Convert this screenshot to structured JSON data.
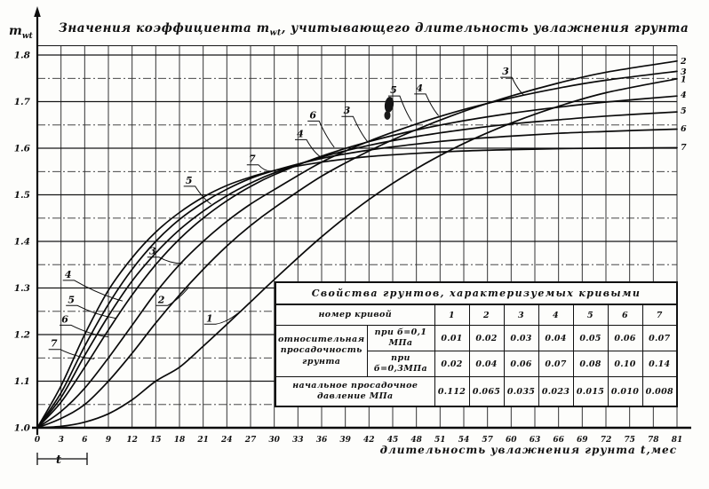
{
  "figure": {
    "title": {
      "prefix": "Значения коэффициента ",
      "symbol": "m",
      "symbol_sub": "wt",
      "suffix": ", учитывающего длительность увлажнения грунта"
    },
    "y_axis": {
      "symbol": "m",
      "symbol_sub": "wt"
    },
    "x_axis": {
      "label": "длительность увлажнения грунта t,мес"
    },
    "origin_bracket_label": "t"
  },
  "chart_data": {
    "type": "line",
    "title": "Значения коэффициента mwt, учитывающего длительность увлажнения грунта",
    "xlabel": "длительность увлажнения грунта t,мес",
    "ylabel": "mwt",
    "xlim": [
      0,
      81
    ],
    "ylim": [
      1.0,
      1.82
    ],
    "grid": true,
    "legend_position": "none",
    "x_ticks": [
      0,
      3,
      6,
      9,
      12,
      15,
      18,
      21,
      24,
      27,
      30,
      33,
      36,
      39,
      42,
      45,
      48,
      51,
      54,
      57,
      60,
      63,
      66,
      69,
      72,
      75,
      78,
      81
    ],
    "y_ticks": [
      1.0,
      1.1,
      1.2,
      1.3,
      1.4,
      1.5,
      1.6,
      1.7,
      1.8
    ],
    "x": [
      0,
      3,
      6,
      9,
      12,
      15,
      18,
      21,
      24,
      27,
      30,
      36,
      42,
      48,
      54,
      60,
      66,
      72,
      81
    ],
    "series": [
      {
        "name": "1",
        "values": [
          1.0,
          1.003,
          1.012,
          1.03,
          1.06,
          1.1,
          1.13,
          1.175,
          1.222,
          1.27,
          1.318,
          1.41,
          1.49,
          1.556,
          1.61,
          1.654,
          1.69,
          1.719,
          1.749
        ]
      },
      {
        "name": "2",
        "values": [
          1.0,
          1.02,
          1.05,
          1.1,
          1.16,
          1.225,
          1.285,
          1.34,
          1.39,
          1.434,
          1.472,
          1.54,
          1.594,
          1.64,
          1.679,
          1.712,
          1.74,
          1.763,
          1.787
        ]
      },
      {
        "name": "3",
        "values": [
          1.0,
          1.035,
          1.085,
          1.15,
          1.22,
          1.29,
          1.35,
          1.4,
          1.443,
          1.48,
          1.511,
          1.57,
          1.615,
          1.652,
          1.683,
          1.708,
          1.729,
          1.746,
          1.765
        ]
      },
      {
        "name": "4",
        "values": [
          1.0,
          1.055,
          1.13,
          1.21,
          1.285,
          1.35,
          1.405,
          1.45,
          1.487,
          1.518,
          1.543,
          1.583,
          1.614,
          1.639,
          1.659,
          1.675,
          1.688,
          1.699,
          1.712
        ]
      },
      {
        "name": "5",
        "values": [
          1.0,
          1.065,
          1.155,
          1.24,
          1.315,
          1.375,
          1.425,
          1.465,
          1.498,
          1.525,
          1.547,
          1.581,
          1.606,
          1.625,
          1.64,
          1.652,
          1.661,
          1.669,
          1.678
        ]
      },
      {
        "name": "6",
        "values": [
          1.0,
          1.075,
          1.175,
          1.265,
          1.34,
          1.4,
          1.447,
          1.483,
          1.512,
          1.535,
          1.552,
          1.578,
          1.596,
          1.609,
          1.619,
          1.626,
          1.632,
          1.636,
          1.641
        ]
      },
      {
        "name": "7",
        "values": [
          1.0,
          1.09,
          1.2,
          1.295,
          1.365,
          1.42,
          1.462,
          1.495,
          1.52,
          1.538,
          1.552,
          1.57,
          1.582,
          1.589,
          1.594,
          1.597,
          1.599,
          1.6,
          1.601
        ]
      }
    ],
    "annotations": [
      {
        "text": "4",
        "t": 3.9,
        "m": 1.322,
        "lt": 10.8,
        "lm": 1.272
      },
      {
        "text": "5",
        "t": 4.3,
        "m": 1.268,
        "lt": 10.0,
        "lm": 1.235
      },
      {
        "text": "6",
        "t": 3.5,
        "m": 1.226,
        "lt": 9.0,
        "lm": 1.195
      },
      {
        "text": "7",
        "t": 2.1,
        "m": 1.174,
        "lt": 7.2,
        "lm": 1.148
      },
      {
        "text": "3",
        "t": 14.6,
        "m": 1.372,
        "lt": 18.4,
        "lm": 1.353
      },
      {
        "text": "2",
        "t": 15.7,
        "m": 1.268,
        "lt": 19.2,
        "lm": 1.302
      },
      {
        "text": "1",
        "t": 21.8,
        "m": 1.228,
        "lt": 25.4,
        "lm": 1.246
      },
      {
        "text": "5",
        "t": 19.2,
        "m": 1.524,
        "lt": 22.0,
        "lm": 1.48
      },
      {
        "text": "7",
        "t": 27.2,
        "m": 1.57,
        "lt": 29.6,
        "lm": 1.551
      },
      {
        "text": "4",
        "t": 33.3,
        "m": 1.624,
        "lt": 35.8,
        "lm": 1.582
      },
      {
        "text": "6",
        "t": 34.9,
        "m": 1.664,
        "lt": 37.6,
        "lm": 1.602
      },
      {
        "text": "3",
        "t": 39.2,
        "m": 1.674,
        "lt": 41.8,
        "lm": 1.614
      },
      {
        "text": "5",
        "t": 45.1,
        "m": 1.718,
        "lt": 47.4,
        "lm": 1.658
      },
      {
        "text": "4",
        "t": 48.4,
        "m": 1.722,
        "lt": 50.8,
        "lm": 1.67
      },
      {
        "text": "3",
        "t": 59.3,
        "m": 1.758,
        "lt": 61.6,
        "lm": 1.714
      }
    ],
    "end_labels": [
      {
        "text": "2",
        "m": 1.787
      },
      {
        "text": "3",
        "m": 1.764
      },
      {
        "text": "1",
        "m": 1.748
      },
      {
        "text": "4",
        "m": 1.714
      },
      {
        "text": "5",
        "m": 1.68
      },
      {
        "text": "6",
        "m": 1.642
      },
      {
        "text": "7",
        "m": 1.602
      }
    ]
  },
  "table": {
    "title": "Свойства грунтов, характеризуемых кривыми",
    "curve_number_label": "номер кривой",
    "curve_numbers": [
      "1",
      "2",
      "3",
      "4",
      "5",
      "6",
      "7"
    ],
    "rel_subsidence_label": "относительная просадочность грунта",
    "row_sigma01_label": "при б=0,1 МПа",
    "row_sigma03_label": "при б=0,3МПа",
    "sigma01_values": [
      "0.01",
      "0.02",
      "0.03",
      "0.04",
      "0.05",
      "0.06",
      "0.07"
    ],
    "sigma03_values": [
      "0.02",
      "0.04",
      "0.06",
      "0.07",
      "0.08",
      "0.10",
      "0.14"
    ],
    "initial_pressure_label": "начальное просадочное давление  МПа",
    "pressure_values": [
      "0.112",
      "0.065",
      "0.035",
      "0.023",
      "0.015",
      "0.010",
      "0.008"
    ]
  }
}
